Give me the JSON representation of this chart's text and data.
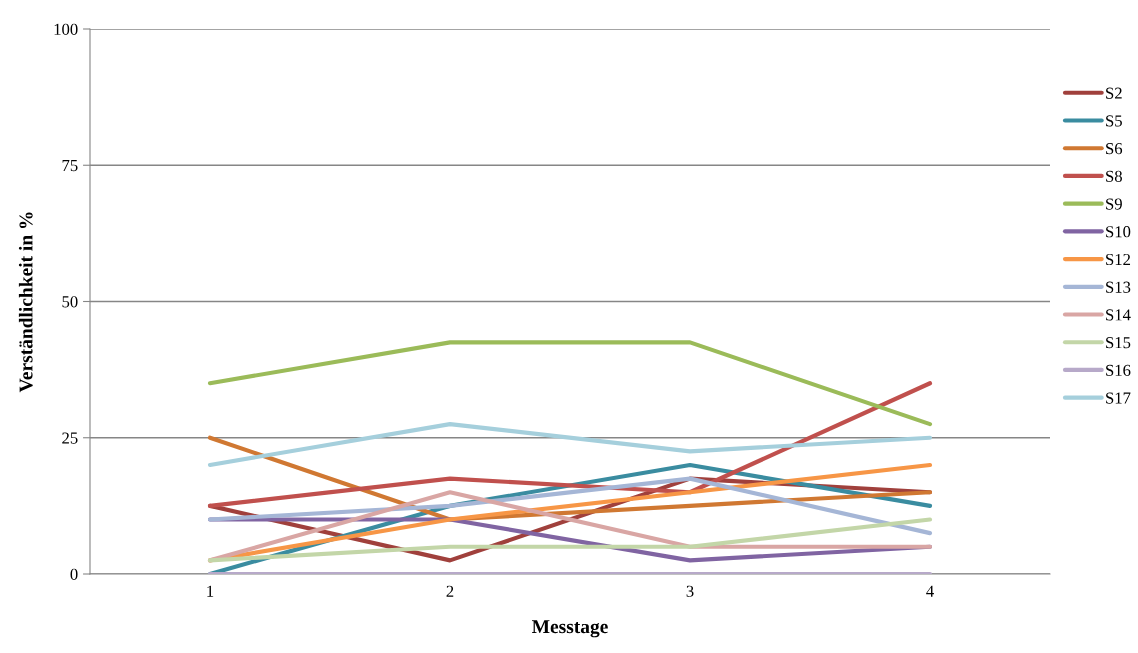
{
  "chart_data": {
    "type": "line",
    "xlabel": "Messtage",
    "ylabel": "Verständlichkeit in %",
    "categories": [
      "1",
      "2",
      "3",
      "4"
    ],
    "ylim": [
      0,
      100
    ],
    "yticks": [
      0,
      25,
      50,
      75,
      100
    ],
    "grid": "y",
    "legend": "right",
    "marker": "none",
    "line_style": "solid",
    "series": [
      {
        "name": "S2",
        "color": "#a0403c",
        "values": [
          12.5,
          2.5,
          17.5,
          15
        ]
      },
      {
        "name": "S5",
        "color": "#3a8ca0",
        "values": [
          0,
          12.5,
          20,
          12.5
        ]
      },
      {
        "name": "S6",
        "color": "#d07832",
        "values": [
          25,
          10,
          12.5,
          15
        ]
      },
      {
        "name": "S8",
        "color": "#c0504d",
        "values": [
          12.5,
          17.5,
          15,
          35
        ]
      },
      {
        "name": "S9",
        "color": "#9bbb59",
        "values": [
          35,
          42.5,
          42.5,
          27.5
        ]
      },
      {
        "name": "S10",
        "color": "#8064a2",
        "values": [
          10,
          10,
          2.5,
          5
        ]
      },
      {
        "name": "S12",
        "color": "#f79646",
        "values": [
          2.5,
          10,
          15,
          20
        ]
      },
      {
        "name": "S13",
        "color": "#a5b6d6",
        "values": [
          10,
          12.5,
          17.5,
          7.5
        ]
      },
      {
        "name": "S14",
        "color": "#d9a6a4",
        "values": [
          2.5,
          15,
          5,
          5
        ]
      },
      {
        "name": "S15",
        "color": "#c3d6a8",
        "values": [
          2.5,
          5,
          5,
          10
        ]
      },
      {
        "name": "S16",
        "color": "#b7a9c9",
        "values": [
          0,
          0,
          0,
          0
        ]
      },
      {
        "name": "S17",
        "color": "#a5cfdc",
        "values": [
          20,
          27.5,
          22.5,
          25
        ]
      }
    ]
  }
}
